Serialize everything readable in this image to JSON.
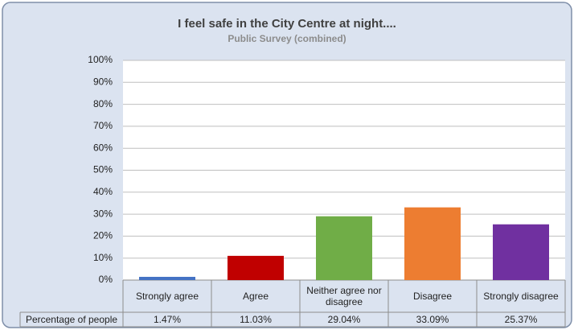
{
  "chart_data": {
    "type": "bar",
    "title": "I feel safe in the City Centre at night....",
    "subtitle": "Public Survey (combined)",
    "categories": [
      "Strongly agree",
      "Agree",
      "Neither agree nor disagree",
      "Disagree",
      "Strongly disagree"
    ],
    "series": [
      {
        "name": "Percentage of people",
        "colors": [
          "#4472c4",
          "#c00000",
          "#70ad47",
          "#ed7d31",
          "#7030a0"
        ],
        "values": [
          1.47,
          11.03,
          29.04,
          33.09,
          25.37
        ],
        "value_labels": [
          "1.47%",
          "11.03%",
          "29.04%",
          "33.09%",
          "25.37%"
        ]
      }
    ],
    "ylim": [
      0,
      100
    ],
    "yticks": [
      {
        "value": 0,
        "label": "0%"
      },
      {
        "value": 10,
        "label": "10%"
      },
      {
        "value": 20,
        "label": "20%"
      },
      {
        "value": 30,
        "label": "30%"
      },
      {
        "value": 40,
        "label": "40%"
      },
      {
        "value": 50,
        "label": "50%"
      },
      {
        "value": 60,
        "label": "60%"
      },
      {
        "value": 70,
        "label": "70%"
      },
      {
        "value": 80,
        "label": "80%"
      },
      {
        "value": 90,
        "label": "90%"
      },
      {
        "value": 100,
        "label": "100%"
      }
    ],
    "grid": true
  }
}
